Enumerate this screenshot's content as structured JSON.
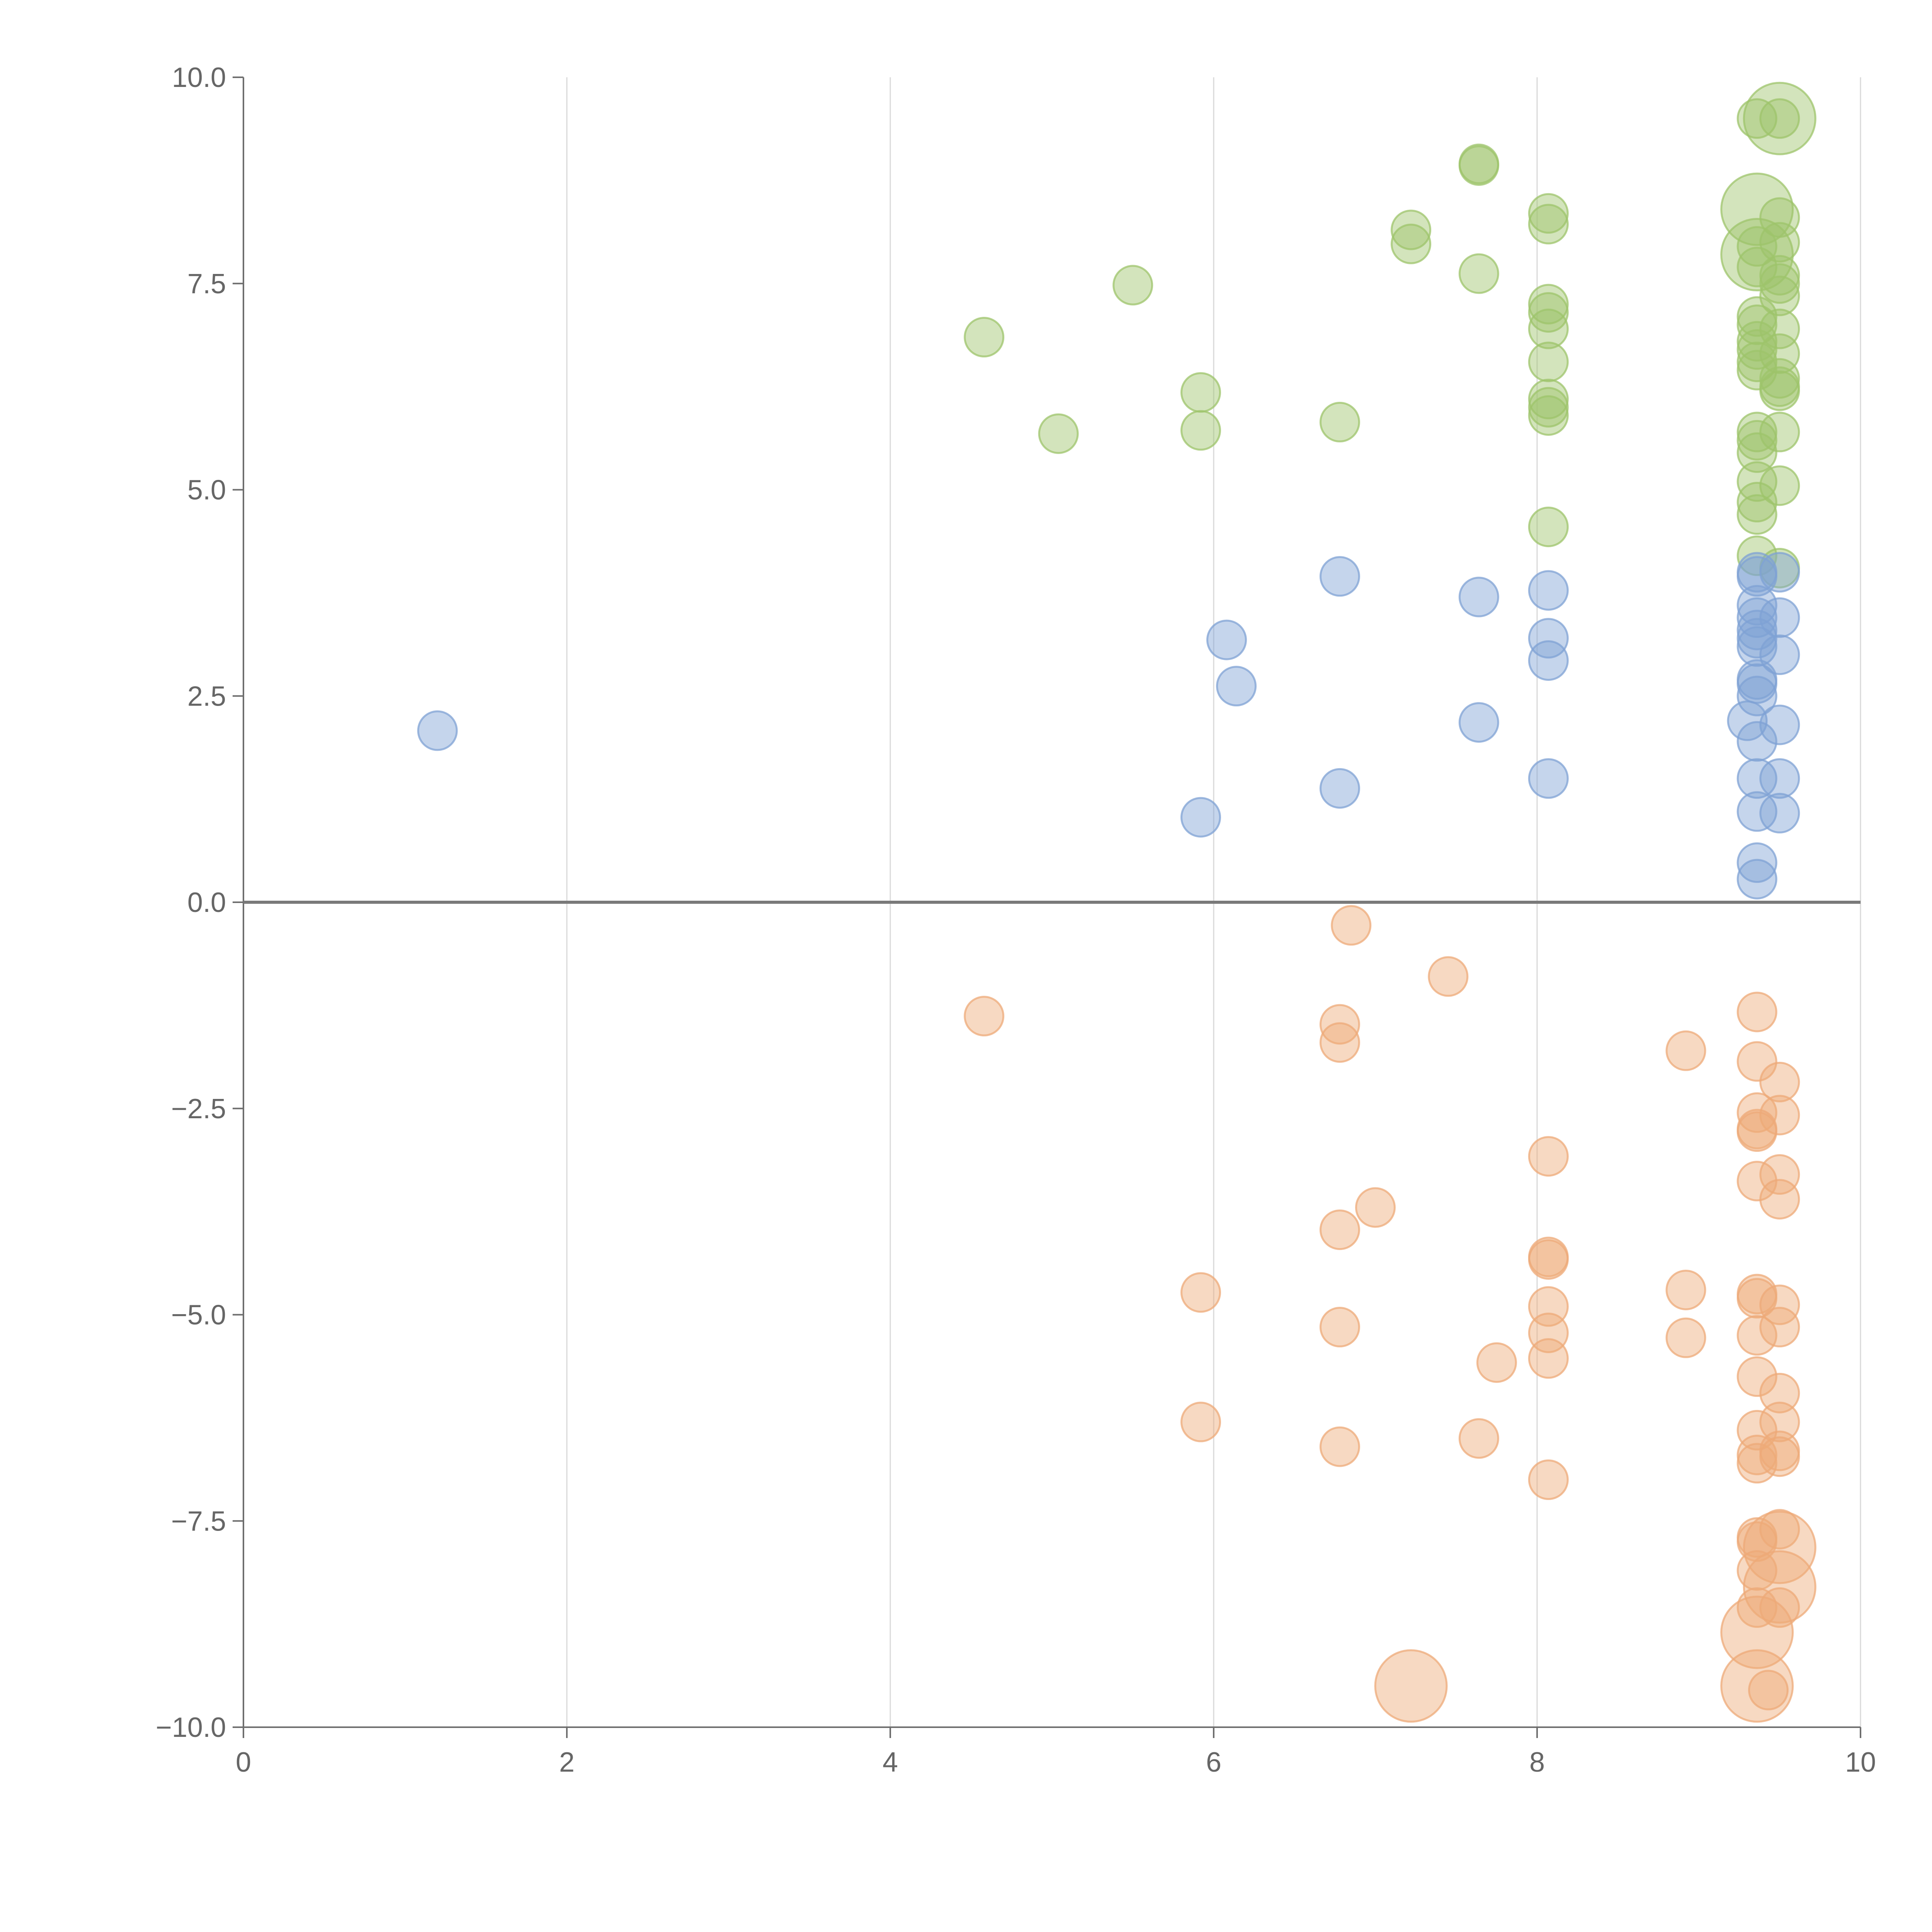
{
  "chart_data": {
    "type": "scatter",
    "title": "",
    "xlabel": "",
    "ylabel": "",
    "xlim": [
      0,
      10
    ],
    "ylim": [
      -10,
      10
    ],
    "grid": {
      "x": true,
      "y": false
    },
    "zero_line": true,
    "x_ticks": [
      "0",
      "2",
      "4",
      "6",
      "8",
      "10"
    ],
    "x_tick_values": [
      0,
      2,
      4,
      6,
      8,
      10
    ],
    "y_ticks": [
      "10.0",
      "7.5",
      "5.0",
      "2.5",
      "0.0",
      "−2.5",
      "−5.0",
      "−7.5",
      "−10.0"
    ],
    "y_tick_values": [
      10,
      7.5,
      5,
      2.5,
      0,
      -2.5,
      -5,
      -7.5,
      -10
    ],
    "series": [
      {
        "color": "#9dc46b",
        "points": [
          [
            4.58,
            6.85,
            1
          ],
          [
            5.04,
            5.68,
            1
          ],
          [
            5.5,
            7.48,
            1
          ],
          [
            5.92,
            6.18,
            1
          ],
          [
            5.92,
            5.72,
            1
          ],
          [
            6.78,
            5.82,
            1
          ],
          [
            7.22,
            8.15,
            1
          ],
          [
            7.22,
            7.98,
            1
          ],
          [
            7.64,
            8.95,
            1
          ],
          [
            7.64,
            8.93,
            1
          ],
          [
            7.64,
            7.62,
            1
          ],
          [
            8.07,
            8.35,
            1
          ],
          [
            8.07,
            8.22,
            1
          ],
          [
            8.07,
            7.25,
            1
          ],
          [
            8.07,
            7.15,
            1
          ],
          [
            8.07,
            6.95,
            1
          ],
          [
            8.07,
            6.55,
            1
          ],
          [
            8.07,
            6.1,
            1
          ],
          [
            8.07,
            6.0,
            1
          ],
          [
            8.07,
            5.9,
            1
          ],
          [
            8.07,
            4.55,
            1
          ],
          [
            9.36,
            9.5,
            1
          ],
          [
            9.5,
            9.5,
            1
          ],
          [
            9.5,
            9.5,
            2
          ],
          [
            9.36,
            8.4,
            2
          ],
          [
            9.36,
            7.85,
            2
          ],
          [
            9.5,
            8.3,
            1
          ],
          [
            9.5,
            8.0,
            1
          ],
          [
            9.36,
            7.95,
            1
          ],
          [
            9.36,
            7.7,
            1
          ],
          [
            9.5,
            7.6,
            1
          ],
          [
            9.5,
            7.5,
            1
          ],
          [
            9.5,
            7.35,
            1
          ],
          [
            9.36,
            7.1,
            1
          ],
          [
            9.36,
            7.0,
            1
          ],
          [
            9.5,
            6.95,
            1
          ],
          [
            9.36,
            6.8,
            1
          ],
          [
            9.36,
            6.7,
            1
          ],
          [
            9.5,
            6.65,
            1
          ],
          [
            9.36,
            6.55,
            1
          ],
          [
            9.36,
            6.45,
            1
          ],
          [
            9.5,
            6.35,
            1
          ],
          [
            9.5,
            6.2,
            1
          ],
          [
            9.5,
            6.25,
            1
          ],
          [
            9.36,
            5.7,
            1
          ],
          [
            9.36,
            5.6,
            1
          ],
          [
            9.5,
            5.7,
            1
          ],
          [
            9.36,
            5.45,
            1
          ],
          [
            9.36,
            5.1,
            1
          ],
          [
            9.5,
            5.05,
            1
          ],
          [
            9.36,
            4.85,
            1
          ],
          [
            9.36,
            4.7,
            1
          ],
          [
            9.36,
            4.2,
            1
          ],
          [
            9.5,
            4.05,
            1
          ]
        ]
      },
      {
        "color": "#7fa1d4",
        "points": [
          [
            1.2,
            2.08,
            1
          ],
          [
            5.92,
            1.03,
            1
          ],
          [
            6.08,
            3.18,
            1
          ],
          [
            6.14,
            2.62,
            1
          ],
          [
            6.78,
            3.95,
            1
          ],
          [
            6.78,
            1.38,
            1
          ],
          [
            7.64,
            3.7,
            1
          ],
          [
            7.64,
            2.18,
            1
          ],
          [
            8.07,
            3.78,
            1
          ],
          [
            8.07,
            3.2,
            1
          ],
          [
            8.07,
            2.93,
            1
          ],
          [
            8.07,
            1.5,
            1
          ],
          [
            9.36,
            4.0,
            1
          ],
          [
            9.36,
            3.95,
            1
          ],
          [
            9.5,
            4.0,
            1
          ],
          [
            9.36,
            3.6,
            1
          ],
          [
            9.36,
            3.45,
            1
          ],
          [
            9.5,
            3.45,
            1
          ],
          [
            9.36,
            3.3,
            1
          ],
          [
            9.36,
            3.2,
            1
          ],
          [
            9.36,
            3.1,
            1
          ],
          [
            9.5,
            3.0,
            1
          ],
          [
            9.36,
            2.7,
            1
          ],
          [
            9.36,
            2.65,
            1
          ],
          [
            9.36,
            2.5,
            1
          ],
          [
            9.3,
            2.2,
            1
          ],
          [
            9.5,
            2.15,
            1
          ],
          [
            9.36,
            1.95,
            1
          ],
          [
            9.36,
            1.5,
            1
          ],
          [
            9.5,
            1.5,
            1
          ],
          [
            9.36,
            1.1,
            1
          ],
          [
            9.5,
            1.08,
            1
          ],
          [
            9.36,
            0.48,
            1
          ],
          [
            9.36,
            0.28,
            1
          ]
        ]
      },
      {
        "color": "#eeaa78",
        "points": [
          [
            4.58,
            -1.38,
            1
          ],
          [
            6.85,
            -0.28,
            1
          ],
          [
            7.45,
            -0.9,
            1
          ],
          [
            6.78,
            -1.48,
            1
          ],
          [
            6.78,
            -1.7,
            1
          ],
          [
            8.92,
            -1.8,
            1
          ],
          [
            9.36,
            -1.33,
            1
          ],
          [
            9.36,
            -1.93,
            1
          ],
          [
            9.5,
            -2.18,
            1
          ],
          [
            9.36,
            -2.55,
            1
          ],
          [
            9.5,
            -2.58,
            1
          ],
          [
            9.36,
            -2.75,
            1
          ],
          [
            9.36,
            -2.78,
            1
          ],
          [
            8.07,
            -3.08,
            1
          ],
          [
            9.5,
            -3.3,
            1
          ],
          [
            9.36,
            -3.38,
            1
          ],
          [
            9.5,
            -3.6,
            1
          ],
          [
            7.0,
            -3.7,
            1
          ],
          [
            6.78,
            -3.97,
            1
          ],
          [
            8.07,
            -4.3,
            1
          ],
          [
            8.07,
            -4.33,
            1
          ],
          [
            5.92,
            -4.73,
            1
          ],
          [
            8.92,
            -4.7,
            1
          ],
          [
            9.36,
            -4.75,
            1
          ],
          [
            9.36,
            -4.8,
            1
          ],
          [
            8.07,
            -4.9,
            1
          ],
          [
            9.5,
            -4.88,
            1
          ],
          [
            6.78,
            -5.15,
            1
          ],
          [
            8.07,
            -5.22,
            1
          ],
          [
            9.36,
            -5.25,
            1
          ],
          [
            9.5,
            -5.15,
            1
          ],
          [
            8.92,
            -5.28,
            1
          ],
          [
            8.07,
            -5.53,
            1
          ],
          [
            7.75,
            -5.58,
            1
          ],
          [
            9.36,
            -5.75,
            1
          ],
          [
            9.5,
            -5.95,
            1
          ],
          [
            5.92,
            -6.3,
            1
          ],
          [
            9.5,
            -6.3,
            1
          ],
          [
            9.36,
            -6.4,
            1
          ],
          [
            7.64,
            -6.5,
            1
          ],
          [
            6.78,
            -6.6,
            1
          ],
          [
            9.36,
            -6.7,
            1
          ],
          [
            9.36,
            -6.8,
            1
          ],
          [
            9.5,
            -6.65,
            1
          ],
          [
            9.5,
            -6.72,
            1
          ],
          [
            8.07,
            -7.0,
            1
          ],
          [
            9.36,
            -7.7,
            1
          ],
          [
            9.36,
            -7.75,
            1
          ],
          [
            9.5,
            -7.6,
            1
          ],
          [
            9.5,
            -7.82,
            2
          ],
          [
            9.36,
            -8.1,
            1
          ],
          [
            9.5,
            -8.3,
            2
          ],
          [
            9.36,
            -8.55,
            1
          ],
          [
            9.5,
            -8.55,
            1
          ],
          [
            9.36,
            -8.85,
            2
          ],
          [
            7.22,
            -9.5,
            2
          ],
          [
            9.36,
            -9.5,
            2
          ],
          [
            9.43,
            -9.55,
            1
          ]
        ]
      }
    ]
  }
}
